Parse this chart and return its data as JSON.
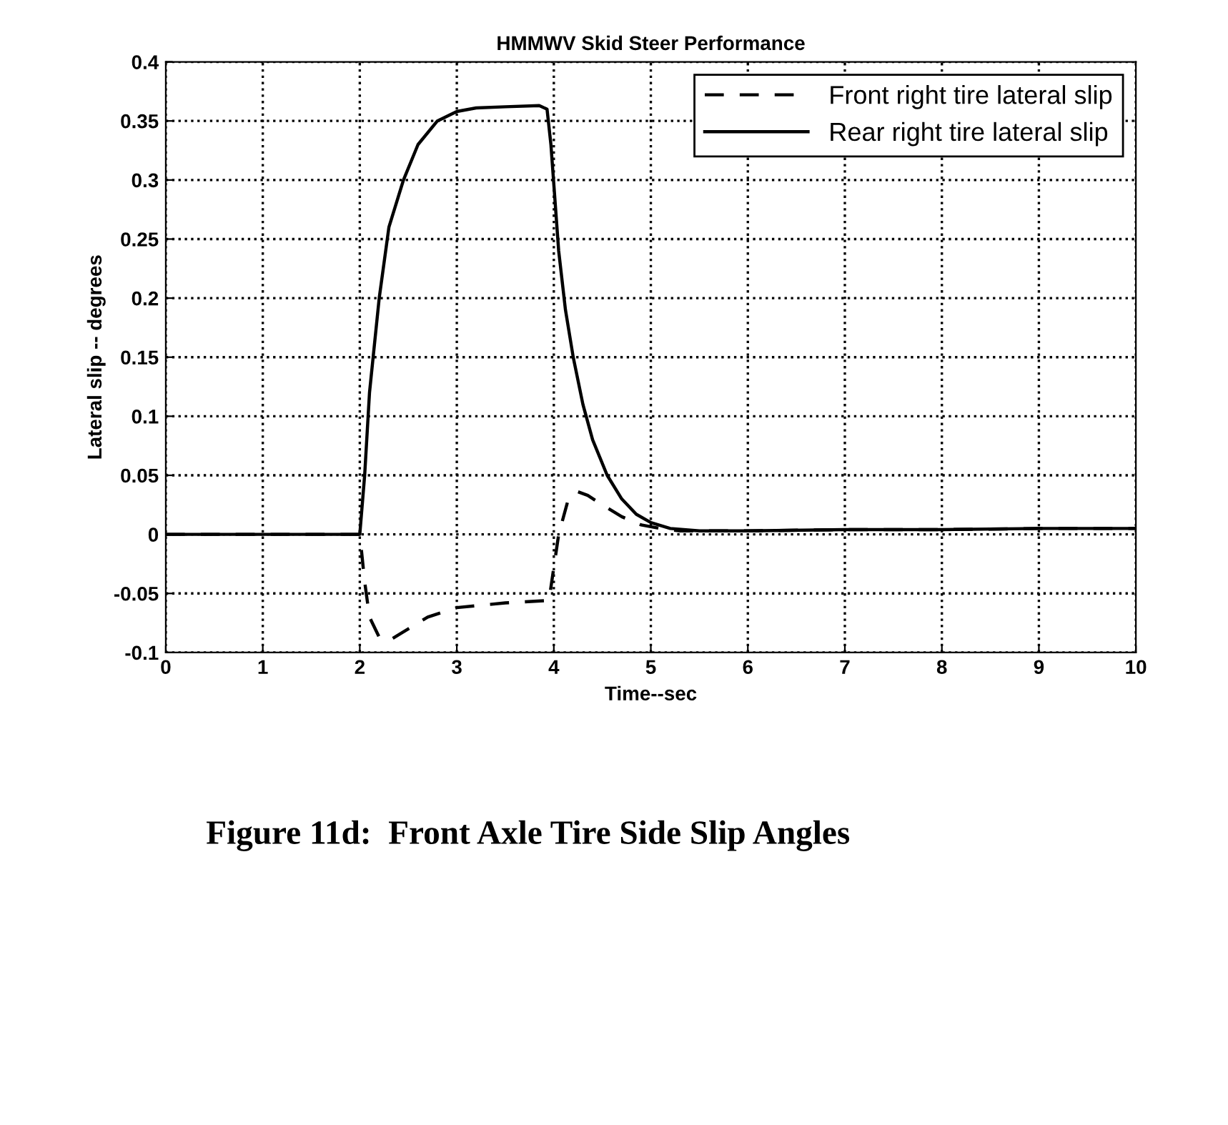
{
  "chart_data": {
    "type": "line",
    "title": "HMMWV Skid Steer Performance",
    "xlabel": "Time--sec",
    "ylabel": "Lateral slip -- degrees",
    "annotations": [
      "Figure 11d:  Front Axle Tire Side Slip Angles"
    ],
    "xlim": [
      0,
      10
    ],
    "xticks": [
      0,
      1,
      2,
      3,
      4,
      5,
      6,
      7,
      8,
      9,
      10
    ],
    "ylim": [
      -0.1,
      0.4
    ],
    "yticks": [
      -0.1,
      -0.05,
      0,
      0.05,
      0.1,
      0.15,
      0.2,
      0.25,
      0.3,
      0.35,
      0.4
    ],
    "grid": true,
    "legend": "top right",
    "series": [
      {
        "name": "Front right tire lateral slip",
        "color": "#000000",
        "line_style": "dashed",
        "x": [
          0,
          2.0,
          2.05,
          2.1,
          2.2,
          2.3,
          2.4,
          2.5,
          2.7,
          3.0,
          3.5,
          3.95,
          4.05,
          4.15,
          4.25,
          4.35,
          4.5,
          4.7,
          4.9,
          5.1,
          5.3,
          6,
          7,
          8,
          9,
          10
        ],
        "values": [
          0,
          0,
          -0.04,
          -0.07,
          -0.087,
          -0.09,
          -0.085,
          -0.08,
          -0.07,
          -0.062,
          -0.058,
          -0.056,
          0.0,
          0.03,
          0.036,
          0.033,
          0.025,
          0.015,
          0.008,
          0.005,
          0.003,
          0.003,
          0.004,
          0.004,
          0.005,
          0.005
        ]
      },
      {
        "name": "Rear right tire lateral slip",
        "color": "#000000",
        "line_style": "solid",
        "x": [
          0,
          2.0,
          2.05,
          2.1,
          2.2,
          2.3,
          2.45,
          2.6,
          2.8,
          3.0,
          3.2,
          3.5,
          3.85,
          3.93,
          3.97,
          4.05,
          4.12,
          4.2,
          4.3,
          4.4,
          4.55,
          4.7,
          4.85,
          5.0,
          5.2,
          5.5,
          6,
          7,
          8,
          9,
          10
        ],
        "values": [
          0,
          0,
          0.05,
          0.12,
          0.2,
          0.26,
          0.3,
          0.33,
          0.35,
          0.358,
          0.361,
          0.362,
          0.363,
          0.36,
          0.33,
          0.24,
          0.19,
          0.15,
          0.11,
          0.08,
          0.05,
          0.03,
          0.017,
          0.01,
          0.005,
          0.003,
          0.003,
          0.004,
          0.004,
          0.005,
          0.005
        ]
      }
    ]
  }
}
